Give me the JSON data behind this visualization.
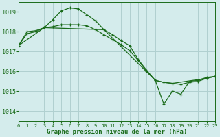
{
  "title": "Graphe pression niveau de la mer (hPa)",
  "background_color": "#d4ecec",
  "grid_color": "#b0d0d0",
  "line_color": "#1a6b1a",
  "xlim": [
    0,
    23
  ],
  "ylim": [
    1013.5,
    1019.5
  ],
  "yticks": [
    1014,
    1015,
    1016,
    1017,
    1018,
    1019
  ],
  "xticks": [
    0,
    1,
    2,
    3,
    4,
    5,
    6,
    7,
    8,
    9,
    10,
    11,
    12,
    13,
    14,
    15,
    16,
    17,
    18,
    19,
    20,
    21,
    22,
    23
  ],
  "series1_x": [
    0,
    1,
    2,
    3,
    4,
    5,
    6,
    7,
    8,
    9,
    10,
    11,
    12,
    13,
    14,
    15,
    16,
    17,
    18,
    19,
    20,
    21,
    22,
    23
  ],
  "series1_y": [
    1017.3,
    1017.9,
    1018.0,
    1018.2,
    1018.6,
    1019.05,
    1019.2,
    1019.15,
    1018.85,
    1018.55,
    1018.1,
    1017.85,
    1017.55,
    1017.3,
    1016.6,
    1016.05,
    1015.55,
    1014.35,
    1015.0,
    1014.85,
    1015.5,
    1015.55,
    1015.7,
    1015.75
  ],
  "series2_x": [
    0,
    1,
    2,
    3,
    4,
    5,
    6,
    7,
    8,
    9,
    10,
    11,
    12,
    13,
    14,
    15,
    16,
    17,
    18,
    19,
    20,
    21,
    22,
    23
  ],
  "series2_y": [
    1017.3,
    1018.0,
    1018.05,
    1018.2,
    1018.25,
    1018.35,
    1018.35,
    1018.35,
    1018.3,
    1018.1,
    1017.85,
    1017.6,
    1017.35,
    1017.05,
    1016.55,
    1016.0,
    1015.55,
    1015.45,
    1015.4,
    1015.35,
    1015.45,
    1015.5,
    1015.65,
    1015.75
  ],
  "series3_x": [
    0,
    3,
    10,
    16,
    17,
    18,
    22,
    23
  ],
  "series3_y": [
    1017.3,
    1018.2,
    1018.1,
    1015.55,
    1015.45,
    1015.4,
    1015.65,
    1015.75
  ]
}
